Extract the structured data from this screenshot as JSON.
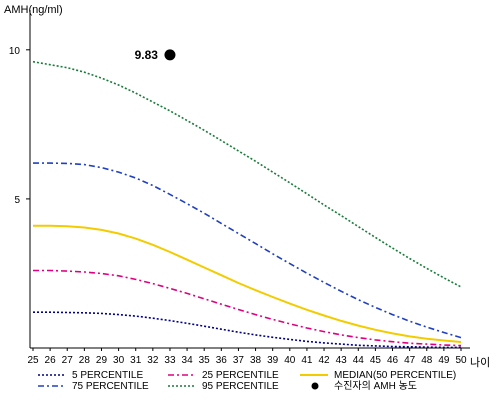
{
  "chart_data": {
    "type": "line",
    "title": "",
    "ylabel": "AMH(ng/ml)",
    "xlabel": "나이",
    "x": [
      25,
      26,
      27,
      28,
      29,
      30,
      31,
      32,
      33,
      34,
      35,
      36,
      37,
      38,
      39,
      40,
      41,
      42,
      43,
      44,
      45,
      46,
      47,
      48,
      49,
      50
    ],
    "xlim": [
      25,
      50
    ],
    "ylim": [
      0,
      11
    ],
    "yticks": [
      5,
      10
    ],
    "grid": false,
    "legend_position": "bottom",
    "series": [
      {
        "name": "5 PERCENTILE",
        "color": "#000080",
        "dash": "dot",
        "values": [
          1.2,
          1.2,
          1.19,
          1.18,
          1.16,
          1.12,
          1.07,
          1.0,
          0.92,
          0.83,
          0.73,
          0.63,
          0.53,
          0.44,
          0.36,
          0.29,
          0.22,
          0.17,
          0.13,
          0.09,
          0.07,
          0.05,
          0.04,
          0.03,
          0.02,
          0.02
        ]
      },
      {
        "name": "25 PERCENTILE",
        "color": "#e0007f",
        "dash": "dashdot",
        "values": [
          2.6,
          2.6,
          2.58,
          2.55,
          2.5,
          2.42,
          2.3,
          2.16,
          2.0,
          1.83,
          1.65,
          1.47,
          1.29,
          1.12,
          0.96,
          0.81,
          0.67,
          0.55,
          0.44,
          0.35,
          0.27,
          0.21,
          0.16,
          0.13,
          0.1,
          0.08
        ]
      },
      {
        "name": "MEDIAN(50 PERCENTILE)",
        "color": "#f2cc00",
        "dash": "solid",
        "values": [
          4.1,
          4.1,
          4.08,
          4.04,
          3.96,
          3.84,
          3.67,
          3.46,
          3.22,
          2.96,
          2.7,
          2.44,
          2.18,
          1.94,
          1.71,
          1.49,
          1.28,
          1.09,
          0.91,
          0.75,
          0.61,
          0.49,
          0.39,
          0.31,
          0.25,
          0.2
        ]
      },
      {
        "name": "75 PERCENTILE",
        "color": "#2040c0",
        "dash": "dashdot",
        "values": [
          6.2,
          6.2,
          6.19,
          6.15,
          6.05,
          5.9,
          5.7,
          5.45,
          5.15,
          4.84,
          4.52,
          4.18,
          3.84,
          3.5,
          3.16,
          2.83,
          2.51,
          2.2,
          1.9,
          1.62,
          1.36,
          1.12,
          0.9,
          0.7,
          0.52,
          0.35
        ]
      },
      {
        "name": "95 PERCENTILE",
        "color": "#1a7a3a",
        "dash": "dot",
        "values": [
          9.6,
          9.5,
          9.4,
          9.25,
          9.05,
          8.82,
          8.55,
          8.25,
          7.95,
          7.63,
          7.3,
          6.96,
          6.61,
          6.26,
          5.9,
          5.54,
          5.17,
          4.8,
          4.44,
          4.07,
          3.71,
          3.35,
          3.0,
          2.67,
          2.35,
          2.05
        ]
      }
    ],
    "markers": [
      {
        "name": "수진자의 AMH 농도",
        "x": 33,
        "y": 9.83,
        "label": "9.83",
        "color": "#000000"
      }
    ]
  },
  "legend": {
    "items": [
      {
        "label": "5 PERCENTILE",
        "color": "#000080",
        "dash": "dot",
        "kind": "line"
      },
      {
        "label": "25 PERCENTILE",
        "color": "#e0007f",
        "dash": "dashdot",
        "kind": "line"
      },
      {
        "label": "MEDIAN(50 PERCENTILE)",
        "color": "#f2cc00",
        "dash": "solid",
        "kind": "line"
      },
      {
        "label": "75 PERCENTILE",
        "color": "#2040c0",
        "dash": "dashdot",
        "kind": "line"
      },
      {
        "label": "95 PERCENTILE",
        "color": "#1a7a3a",
        "dash": "dot",
        "kind": "line"
      },
      {
        "label": "수진자의 AMH 농도",
        "color": "#000000",
        "dash": "",
        "kind": "dot"
      }
    ]
  }
}
